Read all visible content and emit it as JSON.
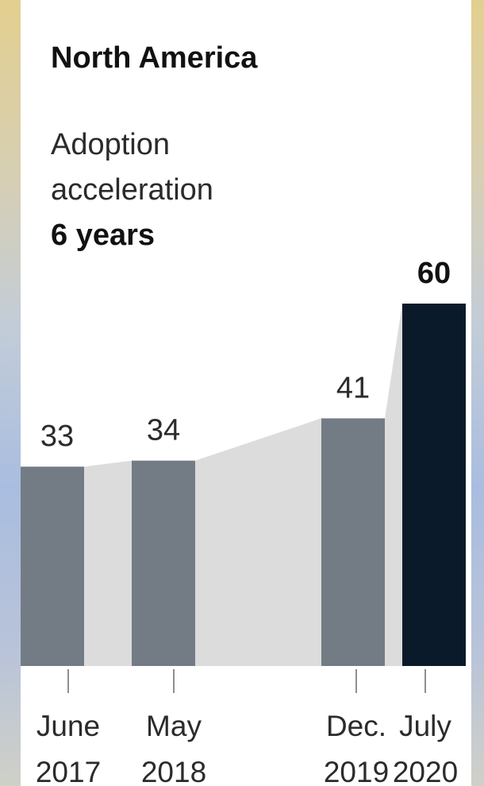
{
  "chart_data": {
    "type": "bar",
    "title": "North America",
    "subtitle_lines": [
      "Adoption",
      "acceleration"
    ],
    "highlight": "6 years",
    "categories": [
      {
        "month": "June",
        "year": "2017"
      },
      {
        "month": "May",
        "year": "2018"
      },
      {
        "month": "Dec.",
        "year": "2019"
      },
      {
        "month": "July",
        "year": "2020"
      }
    ],
    "values": [
      33,
      34,
      41,
      60
    ],
    "value_labels": [
      "33",
      "34",
      "41",
      "60"
    ],
    "ylim": [
      0,
      70
    ],
    "grid": false,
    "legend": "none",
    "colors": {
      "bar": "#737c84",
      "bar_highlight": "#0b1a2b",
      "connector": "#dcdcdc",
      "axis": "#8f8f8f",
      "label": "#2b2b2b",
      "label_highlight": "#111111",
      "card": "#ffffff"
    }
  }
}
